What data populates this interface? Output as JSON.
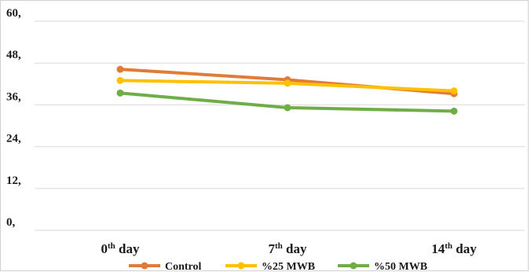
{
  "chart_data": {
    "type": "line",
    "title": "",
    "xlabel": "",
    "ylabel": "",
    "ylim": [
      0,
      60
    ],
    "y_ticks": [
      "0,",
      "12,",
      "24,",
      "36,",
      "48,",
      "60,"
    ],
    "categories": [
      {
        "base": "0",
        "sup": "th",
        "rest": " day"
      },
      {
        "base": "7",
        "sup": "th",
        "rest": " day"
      },
      {
        "base": "14",
        "sup": "th",
        "rest": " day"
      }
    ],
    "series": [
      {
        "name": "Control",
        "color": "#e07b39",
        "values": [
          46.2,
          43.2,
          39.2
        ]
      },
      {
        "name": "%25 MWB",
        "color": "#ffc000",
        "values": [
          43.0,
          42.2,
          40.0
        ]
      },
      {
        "name": "%50 MWB",
        "color": "#70ad47",
        "values": [
          39.4,
          35.2,
          34.2
        ]
      }
    ],
    "grid": true,
    "legend_position": "bottom"
  }
}
